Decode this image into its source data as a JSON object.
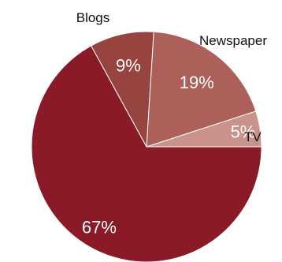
{
  "chart_data": {
    "type": "pie",
    "categories": [
      "TV",
      "Newspaper",
      "Blogs",
      ""
    ],
    "values": [
      5,
      19,
      9,
      67
    ],
    "value_labels": [
      "5%",
      "19%",
      "9%",
      "67%"
    ],
    "colors": [
      "#c9938b",
      "#ad6059",
      "#974441",
      "#8a1a28"
    ],
    "title": "",
    "legend": "none"
  }
}
